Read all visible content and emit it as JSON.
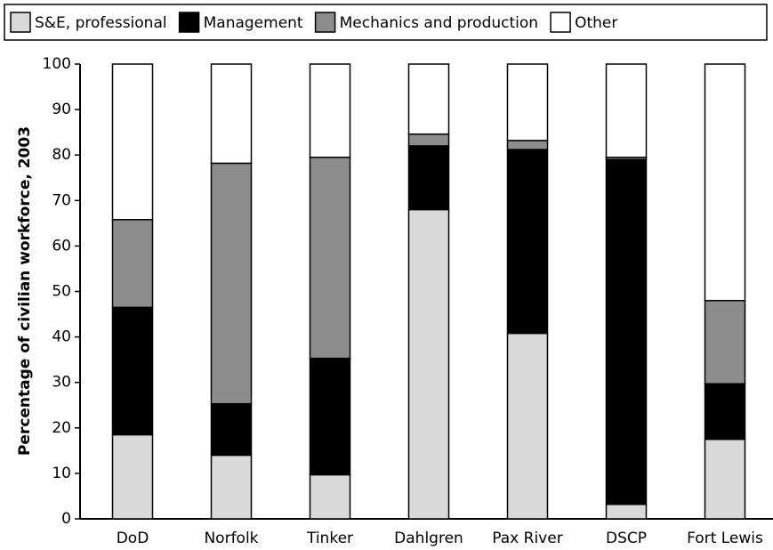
{
  "chart_data": {
    "type": "stacked_bar",
    "ylabel": "Percentage of civilian workforce, 2003",
    "categories": [
      "DoD",
      "Norfolk",
      "Tinker",
      "Dahlgren",
      "Pax River",
      "DSCP",
      "Fort Lewis"
    ],
    "series": [
      {
        "name": "S&E, professional",
        "color": "#d9d9d9",
        "values": [
          18.5,
          14,
          9.7,
          68,
          40.8,
          3.2,
          17.5
        ]
      },
      {
        "name": "Management",
        "color": "#000000",
        "values": [
          28,
          11.3,
          25.6,
          14,
          40.4,
          75.8,
          12.2
        ]
      },
      {
        "name": "Mechanics and production",
        "color": "#8c8c8c",
        "values": [
          19.3,
          52.9,
          44.2,
          2.6,
          2.0,
          0.5,
          18.3
        ]
      },
      {
        "name": "Other",
        "color": "#ffffff",
        "values": [
          34.2,
          21.8,
          20.5,
          15.4,
          16.8,
          20.5,
          52
        ]
      }
    ],
    "ylim": [
      0,
      100
    ],
    "yticks": [
      0,
      10,
      20,
      30,
      40,
      50,
      60,
      70,
      80,
      90,
      100
    ],
    "legend": "top"
  }
}
